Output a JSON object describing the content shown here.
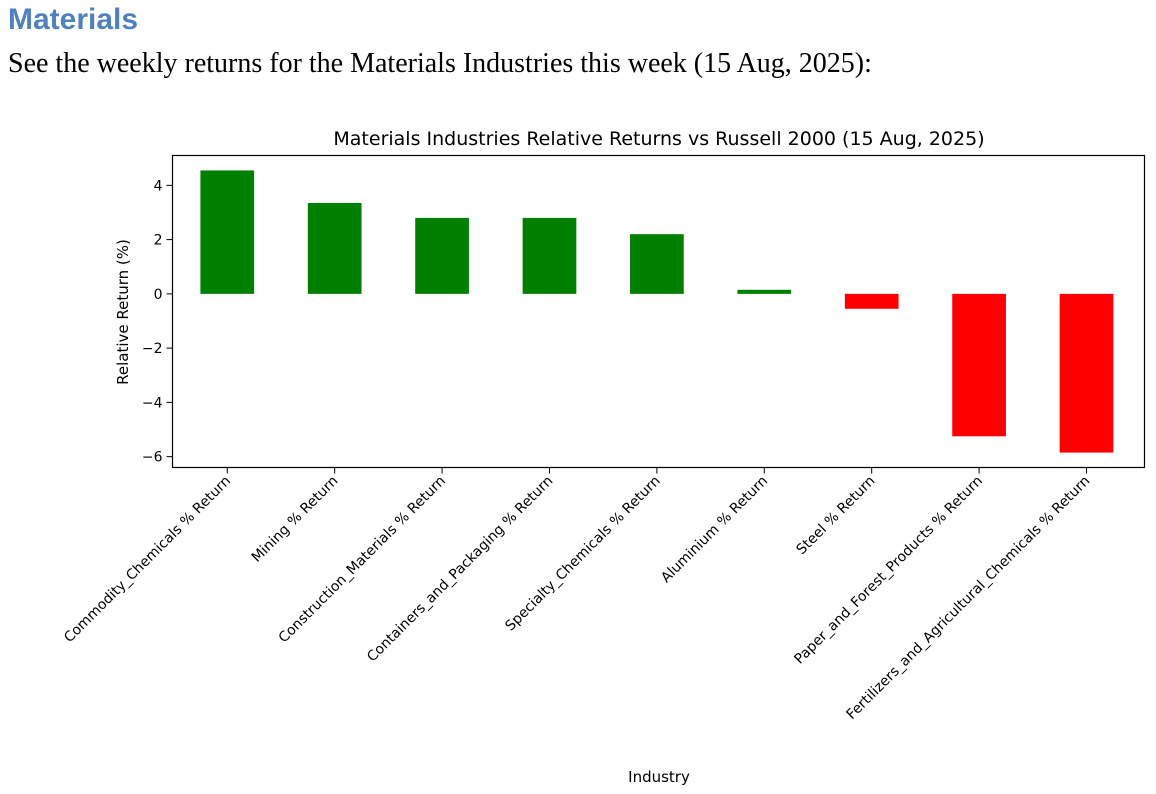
{
  "heading": "Materials",
  "intro": "See the weekly returns for the Materials Industries this week (15 Aug, 2025):",
  "chart_data": {
    "type": "bar",
    "title": "Materials Industries Relative Returns vs Russell 2000 (15 Aug, 2025)",
    "xlabel": "Industry",
    "ylabel": "Relative Return (%)",
    "ylim": [
      -6.4,
      5.1
    ],
    "yticks": [
      -6,
      -4,
      -2,
      0,
      2,
      4
    ],
    "grid": false,
    "categories": [
      "Commodity_Chemicals % Return",
      "Mining % Return",
      "Construction_Materials % Return",
      "Containers_and_Packaging % Return",
      "Specialty_Chemicals % Return",
      "Aluminium % Return",
      "Steel % Return",
      "Paper_and_Forest_Products % Return",
      "Fertilizers_and_Agricultural_Chemicals % Return"
    ],
    "values": [
      4.55,
      3.35,
      2.8,
      2.8,
      2.2,
      0.15,
      -0.55,
      -5.25,
      -5.85
    ],
    "positive_color": "#008000",
    "negative_color": "#ff0000"
  }
}
